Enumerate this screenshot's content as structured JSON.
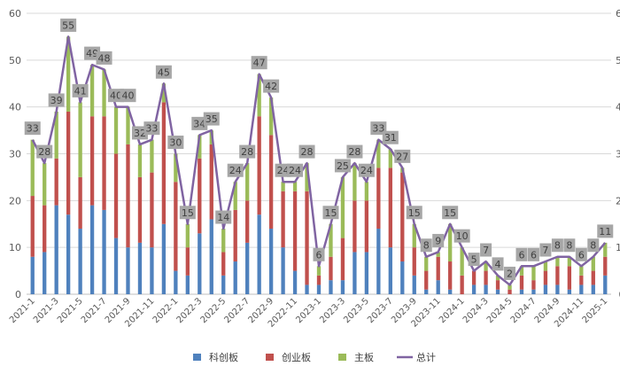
{
  "chart_data": {
    "type": "bar",
    "stacked": true,
    "title": "",
    "xlabel": "",
    "ylabel": "",
    "ylim": [
      0,
      60
    ],
    "yticks": [
      0,
      10,
      20,
      30,
      40,
      50,
      60
    ],
    "grid": "horizontal",
    "legend_position": "bottom-center",
    "colors": {
      "科创板": "#4f81bd",
      "创业板": "#c0504d",
      "主板": "#9bbb59",
      "总计": "#8064a2",
      "label_box": "#a6a6a6"
    },
    "categories": [
      "2021-1",
      "2021-2",
      "2021-3",
      "2021-4",
      "2021-5",
      "2021-6",
      "2021-7",
      "2021-8",
      "2021-9",
      "2021-10",
      "2021-11",
      "2021-12",
      "2022-1",
      "2022-2",
      "2022-3",
      "2022-4",
      "2022-5",
      "2022-6",
      "2022-7",
      "2022-8",
      "2022-9",
      "2022-10",
      "2022-11",
      "2022-12",
      "2023-1",
      "2023-2",
      "2023-3",
      "2023-4",
      "2023-5",
      "2023-6",
      "2023-7",
      "2023-8",
      "2023-9",
      "2023-10",
      "2023-11",
      "2023-12",
      "2024-1",
      "2024-2",
      "2024-3",
      "2024-4",
      "2024-5",
      "2024-6",
      "2024-7",
      "2024-8",
      "2024-9",
      "2024-10",
      "2024-11",
      "2024-12",
      "2025-1"
    ],
    "x_tick_labels": [
      "2021-1",
      "2021-3",
      "2021-5",
      "2021-7",
      "2021-9",
      "2021-11",
      "2022-1",
      "2022-3",
      "2022-5",
      "2022-7",
      "2022-9",
      "2022-11",
      "2023-1",
      "2023-3",
      "2023-5",
      "2023-7",
      "2023-9",
      "2023-11",
      "2024-1",
      "2024-3",
      "2024-5",
      "2024-7",
      "2024-9",
      "2024-11",
      "2025-1"
    ],
    "series": [
      {
        "name": "科创板",
        "type": "bar",
        "values": [
          8,
          9,
          19,
          17,
          14,
          19,
          18,
          12,
          10,
          11,
          10,
          15,
          5,
          4,
          13,
          16,
          4,
          7,
          11,
          17,
          14,
          10,
          5,
          2,
          2,
          3,
          3,
          9,
          9,
          14,
          10,
          7,
          4,
          1,
          3,
          1,
          0,
          2,
          2,
          1,
          0,
          1,
          1,
          2,
          2,
          1,
          2,
          2,
          4
        ]
      },
      {
        "name": "创业板",
        "type": "bar",
        "values": [
          13,
          10,
          10,
          22,
          11,
          19,
          20,
          18,
          22,
          14,
          16,
          26,
          19,
          6,
          16,
          16,
          5,
          11,
          9,
          21,
          20,
          12,
          17,
          20,
          2,
          5,
          9,
          11,
          11,
          13,
          17,
          19,
          6,
          4,
          5,
          6,
          4,
          3,
          3,
          2,
          1,
          3,
          2,
          3,
          4,
          5,
          2,
          3,
          4
        ]
      },
      {
        "name": "主板",
        "type": "bar",
        "values": [
          12,
          9,
          10,
          16,
          16,
          11,
          10,
          10,
          8,
          7,
          7,
          4,
          6,
          5,
          5,
          3,
          5,
          6,
          8,
          9,
          8,
          2,
          2,
          6,
          2,
          7,
          13,
          8,
          4,
          6,
          4,
          1,
          5,
          3,
          1,
          8,
          6,
          0,
          2,
          1,
          1,
          2,
          3,
          2,
          2,
          2,
          2,
          3,
          3
        ]
      },
      {
        "name": "总计",
        "type": "line",
        "values": [
          33,
          28,
          39,
          55,
          41,
          49,
          48,
          40,
          40,
          32,
          33,
          45,
          30,
          15,
          34,
          35,
          14,
          24,
          28,
          47,
          42,
          24,
          24,
          28,
          6,
          15,
          25,
          28,
          24,
          33,
          31,
          27,
          15,
          8,
          9,
          15,
          10,
          5,
          7,
          4,
          2,
          6,
          6,
          7,
          8,
          8,
          6,
          8,
          11
        ]
      }
    ],
    "data_labels": [
      "33",
      "28",
      "39",
      "55",
      "41",
      "49",
      "48",
      "40",
      "40",
      "32",
      "33",
      "45",
      "30",
      "15",
      "34",
      "35",
      "14",
      "24",
      "28",
      "47",
      "42",
      "24",
      "24",
      "28",
      "6",
      "15",
      "25",
      "28",
      "24",
      "33",
      "31",
      "27",
      "15",
      "8",
      "9",
      "15",
      "10",
      "5",
      "7",
      "4",
      "2",
      "6",
      "6",
      "7",
      "8",
      "8",
      "6",
      "8",
      "11"
    ]
  }
}
